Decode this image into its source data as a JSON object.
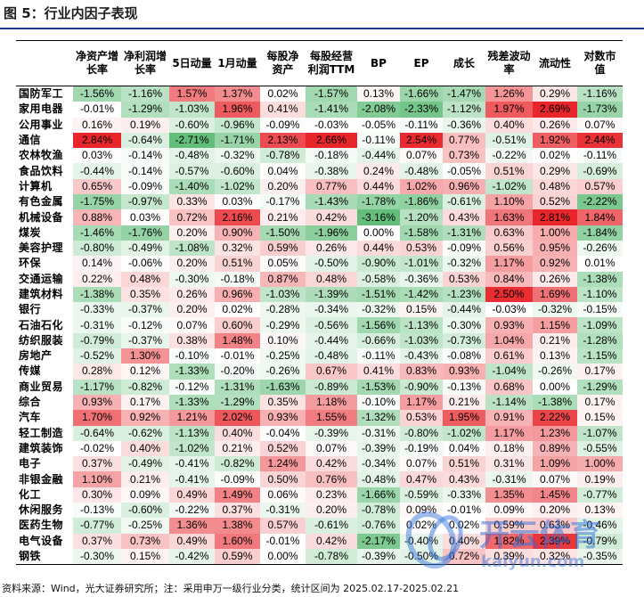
{
  "figure_title": "图 5：行业内因子表现",
  "source_note": "资料来源：Wind，光大证券研究所；注：采用申万一级行业分类，统计区间为 2025.02.17-2025.02.21",
  "watermark_text": "开云体育",
  "watermark_url": "kaiyun.com",
  "colors": {
    "pos": "#e8252b",
    "neg": "#63be7b",
    "mid": "#ffffff",
    "rule": "#1f3a93"
  },
  "columns": [
    "净资产增长率",
    "净利润增长率",
    "5日动量",
    "1月动量",
    "每股净资产",
    "每股经营利润TTM",
    "BP",
    "EP",
    "成长",
    "残差波动率",
    "流动性",
    "对数市值"
  ],
  "rows": [
    {
      "name": "国防军工",
      "values": [
        -1.56,
        -1.16,
        1.57,
        1.37,
        0.02,
        -1.57,
        0.13,
        -1.66,
        -1.47,
        1.26,
        0.29,
        -1.16
      ]
    },
    {
      "name": "家用电器",
      "values": [
        -0.01,
        -1.29,
        -1.03,
        1.96,
        0.41,
        -1.41,
        -2.08,
        -2.33,
        -1.12,
        1.97,
        2.69,
        -1.73
      ]
    },
    {
      "name": "公用事业",
      "values": [
        0.16,
        0.19,
        -0.6,
        -0.96,
        -0.09,
        -0.03,
        -0.05,
        -0.11,
        -0.36,
        0.4,
        0.26,
        0.07
      ]
    },
    {
      "name": "通信",
      "values": [
        2.84,
        -0.64,
        -2.71,
        -1.71,
        2.13,
        2.66,
        -0.11,
        2.54,
        0.77,
        -0.51,
        1.92,
        2.44
      ]
    },
    {
      "name": "农林牧渔",
      "values": [
        0.03,
        -0.14,
        -0.48,
        -0.32,
        -0.78,
        -0.18,
        -0.44,
        0.07,
        0.73,
        -0.22,
        0.02,
        -0.11
      ]
    },
    {
      "name": "食品饮料",
      "values": [
        -0.44,
        -0.14,
        -0.57,
        -0.6,
        0.04,
        -0.38,
        0.24,
        -0.48,
        -0.05,
        0.51,
        0.29,
        -0.69
      ]
    },
    {
      "name": "计算机",
      "values": [
        0.65,
        -0.09,
        -1.4,
        -1.02,
        0.2,
        0.77,
        0.44,
        1.02,
        0.96,
        -1.02,
        0.48,
        0.57
      ]
    },
    {
      "name": "有色金属",
      "values": [
        -1.75,
        -0.97,
        0.33,
        0.03,
        -0.17,
        -1.43,
        -1.78,
        -1.86,
        -0.61,
        1.1,
        0.52,
        -2.22
      ]
    },
    {
      "name": "机械设备",
      "values": [
        0.88,
        0.03,
        0.72,
        2.16,
        0.21,
        0.42,
        -3.16,
        -1.2,
        0.43,
        1.63,
        2.81,
        1.84
      ]
    },
    {
      "name": "煤炭",
      "values": [
        -1.46,
        -1.76,
        0.2,
        0.9,
        -1.5,
        -1.96,
        0.0,
        -1.58,
        -1.31,
        0.63,
        1.0,
        -1.84
      ]
    },
    {
      "name": "美容护理",
      "values": [
        -0.8,
        -0.49,
        -1.08,
        0.32,
        0.59,
        0.26,
        0.44,
        0.53,
        -0.09,
        0.56,
        0.95,
        -0.26
      ]
    },
    {
      "name": "环保",
      "values": [
        0.14,
        -0.06,
        0.2,
        0.51,
        0.05,
        -0.5,
        -0.9,
        -1.01,
        -0.32,
        1.17,
        0.92,
        0.01
      ]
    },
    {
      "name": "交通运输",
      "values": [
        0.22,
        0.48,
        -0.3,
        -0.18,
        0.87,
        0.48,
        -0.58,
        -0.36,
        0.53,
        0.84,
        0.26,
        -1.38
      ]
    },
    {
      "name": "建筑材料",
      "values": [
        -1.38,
        0.35,
        0.26,
        0.96,
        -1.03,
        -1.39,
        -1.51,
        -1.42,
        -1.23,
        2.5,
        1.69,
        -1.1
      ]
    },
    {
      "name": "银行",
      "values": [
        -0.33,
        -0.37,
        0.2,
        0.02,
        -0.28,
        -0.34,
        -0.32,
        0.15,
        -0.44,
        -0.03,
        -0.32,
        -0.15
      ]
    },
    {
      "name": "石油石化",
      "values": [
        -0.31,
        -0.12,
        0.07,
        0.6,
        -0.29,
        -0.56,
        -1.56,
        -1.13,
        -0.3,
        0.93,
        1.15,
        -1.09
      ]
    },
    {
      "name": "纺织服装",
      "values": [
        -0.79,
        -0.37,
        0.38,
        1.48,
        0.1,
        -0.44,
        -0.66,
        -1.03,
        -0.73,
        1.04,
        0.21,
        -1.28
      ]
    },
    {
      "name": "房地产",
      "values": [
        -0.52,
        1.3,
        -0.1,
        -0.01,
        -0.25,
        -0.48,
        -0.11,
        -0.43,
        -0.08,
        0.61,
        0.13,
        -1.15
      ]
    },
    {
      "name": "传媒",
      "values": [
        0.28,
        0.12,
        -1.33,
        -0.2,
        -0.26,
        0.67,
        0.41,
        0.83,
        0.93,
        -1.04,
        -0.26,
        0.17
      ]
    },
    {
      "name": "商业贸易",
      "values": [
        -1.17,
        -0.82,
        -0.12,
        -1.31,
        -1.63,
        -0.89,
        -1.53,
        -0.9,
        -0.13,
        0.68,
        0.0,
        -1.29
      ]
    },
    {
      "name": "综合",
      "values": [
        0.93,
        0.17,
        -1.33,
        -1.29,
        0.35,
        1.18,
        -0.1,
        1.17,
        0.21,
        -1.14,
        -1.38,
        0.17
      ]
    },
    {
      "name": "汽车",
      "values": [
        1.7,
        0.92,
        1.21,
        2.02,
        0.93,
        1.55,
        -1.32,
        0.53,
        1.95,
        0.91,
        2.22,
        0.15
      ]
    },
    {
      "name": "轻工制造",
      "values": [
        -0.64,
        -0.62,
        -1.13,
        0.4,
        -0.04,
        -0.39,
        -0.31,
        -0.8,
        -1.02,
        1.17,
        1.23,
        -1.07
      ]
    },
    {
      "name": "建筑装饰",
      "values": [
        -0.02,
        0.4,
        -1.02,
        0.21,
        0.52,
        0.07,
        -0.39,
        -0.19,
        0.04,
        0.18,
        0.89,
        -0.55
      ]
    },
    {
      "name": "电子",
      "values": [
        0.37,
        -0.49,
        -0.41,
        -0.82,
        1.24,
        0.42,
        -0.34,
        0.07,
        0.51,
        0.31,
        1.09,
        1.0
      ]
    },
    {
      "name": "非银金融",
      "values": [
        1.1,
        0.21,
        -0.41,
        -0.09,
        0.5,
        0.76,
        -0.48,
        0.47,
        0.43,
        -0.31,
        0.07,
        0.19
      ]
    },
    {
      "name": "化工",
      "values": [
        0.3,
        0.09,
        0.49,
        1.49,
        0.06,
        0.23,
        -1.66,
        -0.59,
        -0.33,
        1.35,
        1.45,
        -0.77
      ]
    },
    {
      "name": "休闲服务",
      "values": [
        -0.13,
        -0.6,
        -0.22,
        0.37,
        -0.31,
        0.2,
        -0.78,
        0.09,
        -0.01,
        0.09,
        0.2,
        0.13
      ]
    },
    {
      "name": "医药生物",
      "values": [
        -0.77,
        -0.25,
        1.36,
        1.38,
        0.57,
        -0.61,
        -0.76,
        0.02,
        0.02,
        0.59,
        0.63,
        -0.46
      ]
    },
    {
      "name": "电气设备",
      "values": [
        0.37,
        0.73,
        0.49,
        1.6,
        -0.01,
        0.42,
        -2.17,
        -0.4,
        0.4,
        1.82,
        2.39,
        -0.79
      ]
    },
    {
      "name": "钢铁",
      "values": [
        -0.3,
        0.15,
        -0.42,
        0.59,
        0.0,
        -0.78,
        -0.39,
        -0.5,
        0.72,
        0.39,
        0.32,
        -0.35
      ]
    }
  ]
}
